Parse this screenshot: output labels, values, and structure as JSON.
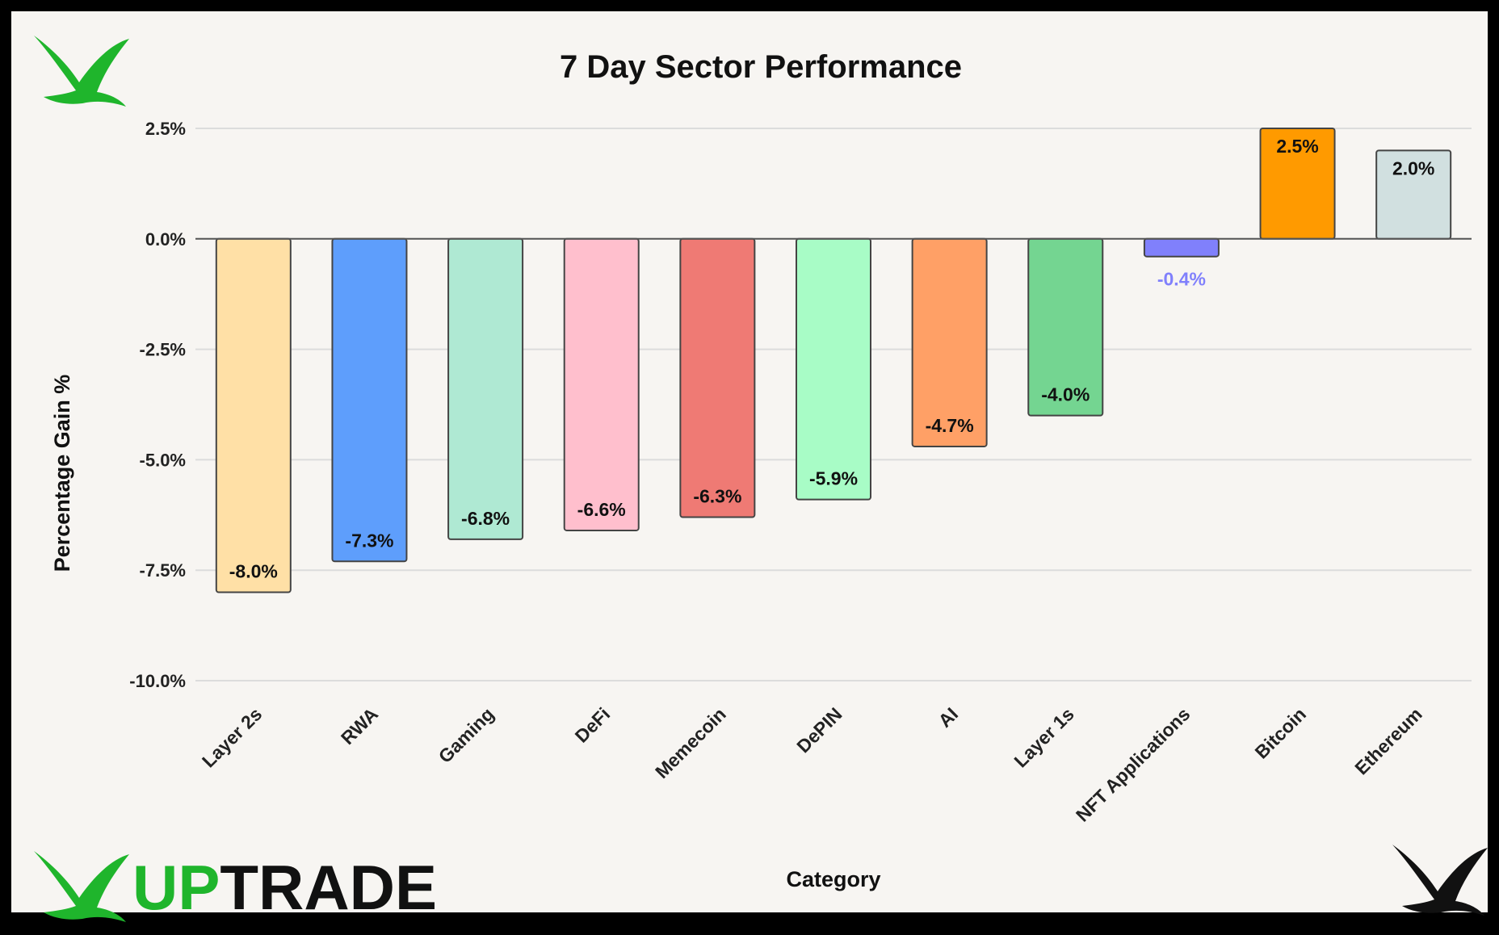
{
  "brand": {
    "name_part1": "UP",
    "name_part2": "TRADE",
    "green": "#1fb52c",
    "black": "#111111"
  },
  "icons": {
    "top_left": "bird-logo-green-icon",
    "bottom_left": "bird-logo-green-icon",
    "bottom_right": "bird-logo-black-icon"
  },
  "chart_data": {
    "type": "bar",
    "title": "7 Day Sector Performance",
    "xlabel": "Category",
    "ylabel": "Percentage Gain %",
    "ylim": [
      -10,
      2.5
    ],
    "yticks": [
      2.5,
      0.0,
      -2.5,
      -5.0,
      -7.5,
      -10.0
    ],
    "ytick_labels": [
      "2.5%",
      "0.0%",
      "-2.5%",
      "-5.0%",
      "-7.5%",
      "-10.0%"
    ],
    "grid": true,
    "categories": [
      "Layer 2s",
      "RWA",
      "Gaming",
      "DeFi",
      "Memecoin",
      "DePIN",
      "AI",
      "Layer 1s",
      "NFT Applications",
      "Bitcoin",
      "Ethereum"
    ],
    "values": [
      -8.0,
      -7.3,
      -6.8,
      -6.6,
      -6.3,
      -5.9,
      -4.7,
      -4.0,
      -0.4,
      2.5,
      2.0
    ],
    "data_labels": [
      "-8.0%",
      "-7.3%",
      "-6.8%",
      "-6.6%",
      "-6.3%",
      "-5.9%",
      "-4.7%",
      "-4.0%",
      "-0.4%",
      "2.5%",
      "2.0%"
    ],
    "colors": [
      "#ffe0a6",
      "#5e9efc",
      "#afe9d3",
      "#ffbfcd",
      "#ef7a74",
      "#a8fcc6",
      "#ffa066",
      "#74d591",
      "#8080fc",
      "#ff9a00",
      "#d1e0e0"
    ]
  }
}
